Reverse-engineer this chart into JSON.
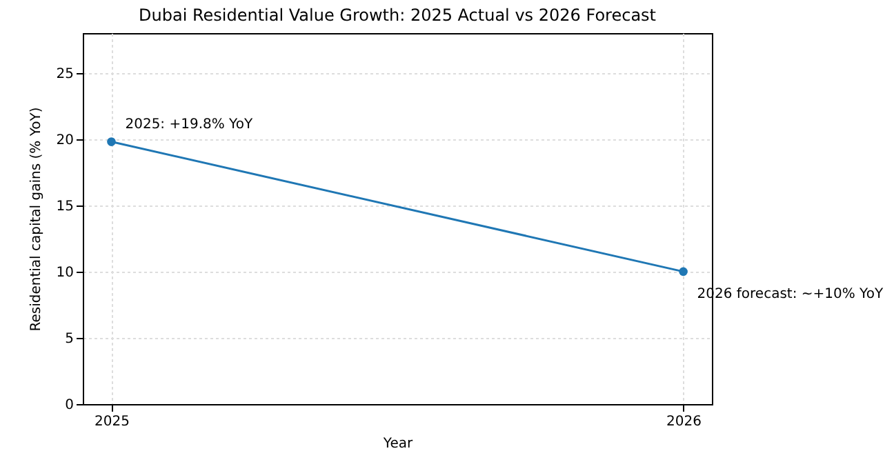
{
  "chart_data": {
    "type": "line",
    "title": "Dubai Residential Value Growth: 2025 Actual vs 2026 Forecast",
    "xlabel": "Year",
    "ylabel": "Residential capital gains (% YoY)",
    "x": [
      2025,
      2026
    ],
    "series": [
      {
        "color": "#1f77b4",
        "values": [
          19.8,
          10
        ]
      }
    ],
    "xlim": [
      2024.95,
      2026.05
    ],
    "xticks": [
      2025,
      2026
    ],
    "ylim": [
      0,
      28
    ],
    "yticks": [
      0,
      5,
      10,
      15,
      20,
      25
    ],
    "grid": true,
    "marker": "circle",
    "line_style": "solid",
    "annotations": [
      {
        "text": "2025: +19.8% YoY",
        "x": 2025,
        "y": 19.8
      },
      {
        "text": "2026 forecast: ~+10% YoY",
        "x": 2026,
        "y": 10
      }
    ]
  }
}
